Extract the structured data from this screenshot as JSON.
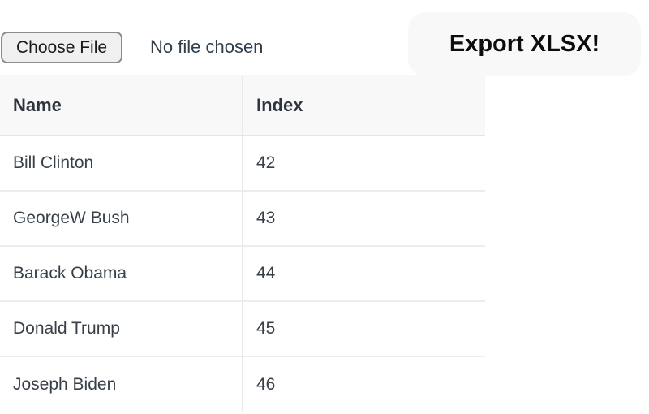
{
  "file_upload": {
    "button_label": "Choose File",
    "status_text": "No file chosen"
  },
  "export": {
    "label": "Export XLSX!"
  },
  "table": {
    "columns": [
      "Name",
      "Index"
    ],
    "rows": [
      {
        "name": "Bill Clinton",
        "index": "42"
      },
      {
        "name": "GeorgeW Bush",
        "index": "43"
      },
      {
        "name": "Barack Obama",
        "index": "44"
      },
      {
        "name": "Donald Trump",
        "index": "45"
      },
      {
        "name": "Joseph Biden",
        "index": "46"
      }
    ]
  },
  "colors": {
    "header_background": "#f8f8f8",
    "row_border": "#ececec",
    "table_text": "#37404a",
    "file_status_text": "#2c3e50",
    "export_button_background": "#f8f8f8"
  }
}
